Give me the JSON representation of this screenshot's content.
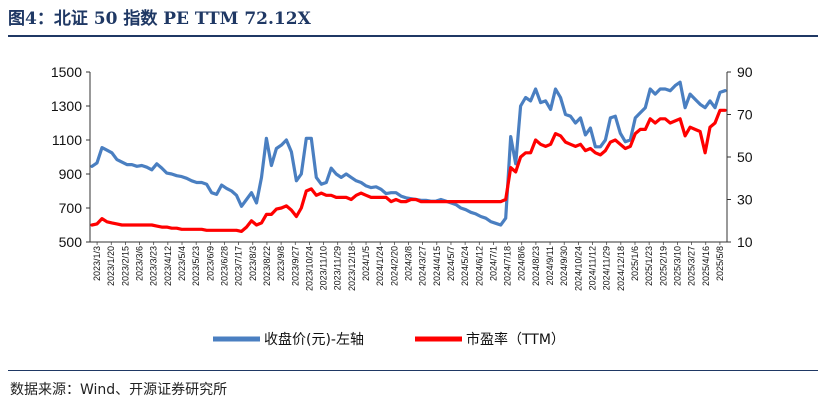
{
  "title": "图4：北证 50 指数 PE TTM 72.12X",
  "source": "数据来源：Wind、开源证券研究所",
  "colors": {
    "title": "#1f3864",
    "series_index": "#4a7fc1",
    "series_pe": "#ff0000"
  },
  "chart_data": {
    "type": "line",
    "legend_placement": "bottom",
    "grid": false,
    "left_axis": {
      "ylim": [
        500,
        1500
      ],
      "ticks": [
        "1500",
        "1300",
        "1100",
        "900",
        "700",
        "500"
      ]
    },
    "right_axis": {
      "ylim": [
        10,
        90
      ],
      "ticks": [
        "90",
        "70",
        "50",
        "30",
        "10"
      ]
    },
    "x_tick_labels": [
      "2023/1/3",
      "2023/1/20",
      "2023/2/15",
      "2023/3/6",
      "2023/3/23",
      "2023/4/12",
      "2023/5/4",
      "2023/5/23",
      "2023/6/9",
      "2023/6/28",
      "2023/7/17",
      "2023/8/3",
      "2023/8/22",
      "2023/9/8",
      "2023/9/27",
      "2023/10/24",
      "2023/11/10",
      "2023/11/29",
      "2023/12/18",
      "2024/1/5",
      "2024/1/24",
      "2024/2/20",
      "2024/3/8",
      "2024/3/27",
      "2024/4/15",
      "2024/5/7",
      "2024/5/24",
      "2024/6/12",
      "2024/7/1",
      "2024/7/18",
      "2024/8/6",
      "2024/8/23",
      "2024/9/11",
      "2024/9/30",
      "2024/10/24",
      "2024/11/12",
      "2024/11/29",
      "2024/12/18",
      "2025/1/6",
      "2025/1/23",
      "2025/2/19",
      "2025/3/10",
      "2025/3/27",
      "2025/4/16",
      "2025/5/8"
    ],
    "series": [
      {
        "name": "收盘价(元)-左轴",
        "axis": "left",
        "values": [
          945,
          965,
          1055,
          1040,
          1025,
          985,
          970,
          955,
          955,
          945,
          950,
          940,
          925,
          960,
          935,
          905,
          900,
          890,
          885,
          875,
          860,
          850,
          850,
          840,
          790,
          780,
          835,
          815,
          800,
          775,
          710,
          750,
          790,
          730,
          880,
          1110,
          950,
          1050,
          1070,
          1100,
          1030,
          860,
          900,
          1110,
          1110,
          880,
          840,
          850,
          935,
          900,
          880,
          900,
          880,
          860,
          850,
          830,
          820,
          825,
          810,
          785,
          790,
          790,
          770,
          760,
          755,
          750,
          745,
          745,
          740,
          740,
          750,
          740,
          730,
          720,
          700,
          690,
          675,
          665,
          650,
          640,
          620,
          610,
          600,
          640,
          1120,
          960,
          1300,
          1350,
          1330,
          1400,
          1320,
          1330,
          1280,
          1400,
          1350,
          1250,
          1240,
          1200,
          1230,
          1130,
          1170,
          1060,
          1060,
          1100,
          1230,
          1240,
          1140,
          1090,
          1100,
          1230,
          1260,
          1290,
          1400,
          1370,
          1400,
          1400,
          1390,
          1420,
          1440,
          1290,
          1370,
          1340,
          1310,
          1290,
          1330,
          1290,
          1380,
          1390
        ]
      },
      {
        "name": "市盈率（TTM）",
        "axis": "right",
        "values": [
          18,
          18.5,
          21,
          19.5,
          19,
          18.5,
          18,
          18,
          18,
          18,
          18,
          18,
          18,
          17.5,
          17,
          17,
          16.5,
          16.5,
          16,
          16,
          16,
          16,
          16,
          15.5,
          15.5,
          15.5,
          15.5,
          15.5,
          15.5,
          15.5,
          15,
          17,
          20,
          18,
          19,
          23,
          23,
          25.5,
          26,
          27,
          25,
          22,
          26,
          34,
          35,
          32,
          33,
          32,
          32,
          31,
          31,
          31,
          30,
          32,
          33,
          32,
          31,
          31,
          31,
          31,
          29,
          30,
          29,
          29,
          30,
          30,
          29,
          29,
          29,
          29,
          29,
          29,
          29,
          29,
          29,
          29,
          29,
          29,
          29,
          29,
          29,
          29,
          29,
          30,
          45,
          43,
          50,
          52,
          52,
          58,
          56,
          55,
          56,
          61,
          60,
          57,
          56,
          55,
          56,
          53,
          54,
          52,
          51,
          53,
          57,
          58,
          56,
          54,
          55,
          61,
          63,
          63,
          68,
          66,
          68,
          68,
          66,
          67,
          68,
          60,
          64,
          63,
          62,
          52,
          64,
          66,
          72,
          72
        ]
      }
    ]
  }
}
